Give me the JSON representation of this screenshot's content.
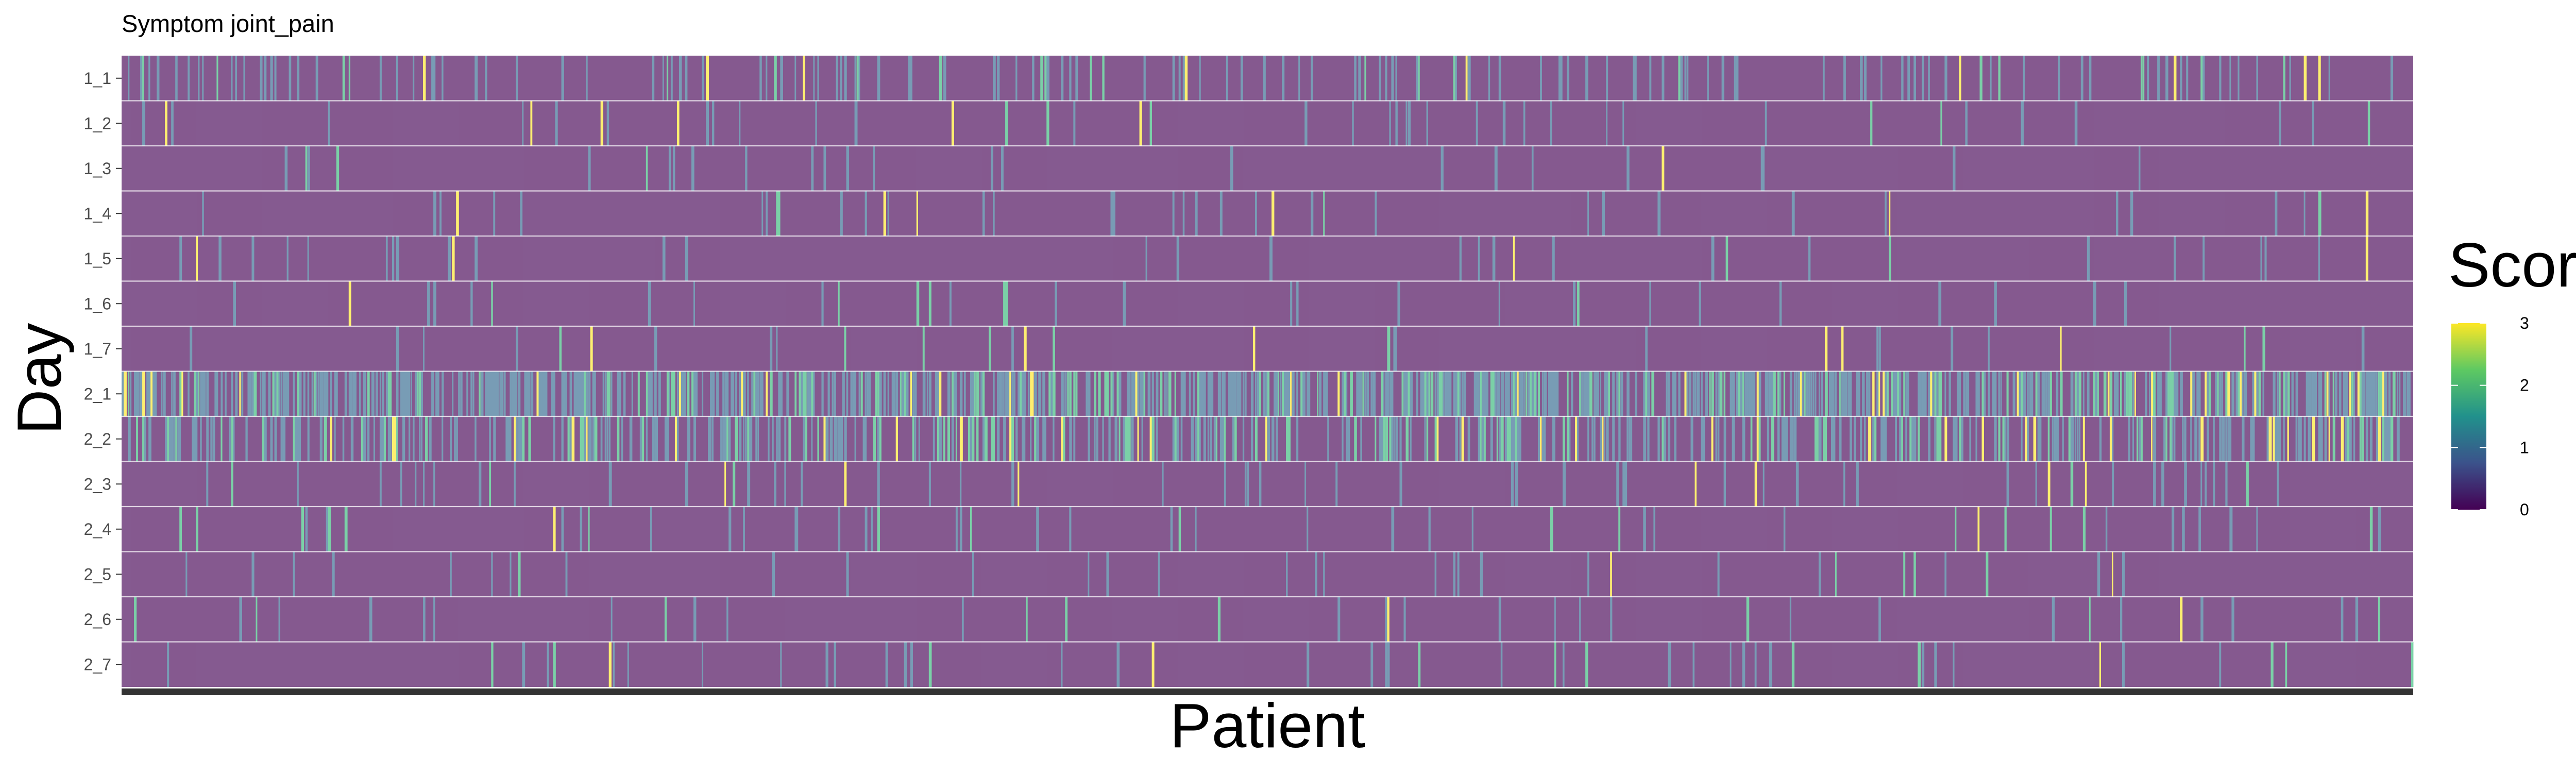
{
  "chart_data": {
    "type": "heatmap",
    "title": "Symptom joint_pain",
    "xlabel": "Patient",
    "ylabel": "Day",
    "rows": [
      "1_1",
      "1_2",
      "1_3",
      "1_4",
      "1_5",
      "1_6",
      "1_7",
      "2_1",
      "2_2",
      "2_3",
      "2_4",
      "2_5",
      "2_6",
      "2_7"
    ],
    "row_nonzero_fraction": [
      0.12,
      0.05,
      0.03,
      0.03,
      0.03,
      0.03,
      0.03,
      0.65,
      0.4,
      0.05,
      0.04,
      0.03,
      0.03,
      0.03
    ],
    "value_range": [
      0,
      3
    ],
    "colorscale": "viridis",
    "colors": {
      "zero": "#440154",
      "one": "#31688e",
      "two": "#35b779",
      "three": "#fde725",
      "cell_border": "#ffffff",
      "tile_alpha": 0.65
    },
    "legend": {
      "title": "Score",
      "ticks": [
        "0",
        "1",
        "2",
        "3"
      ],
      "position": "right"
    },
    "grid": false
  }
}
